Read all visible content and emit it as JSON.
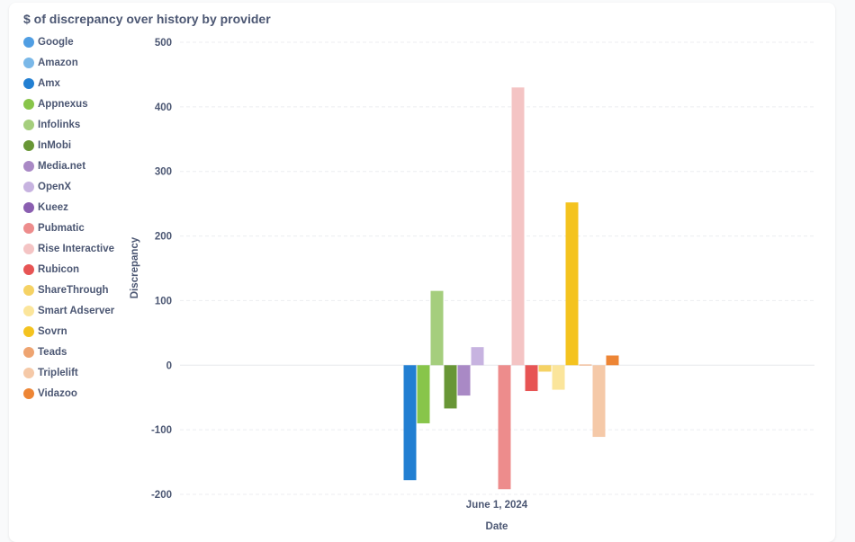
{
  "chart_data": {
    "type": "bar",
    "title": "$ of discrepancy over history by provider",
    "xlabel": "Date",
    "ylabel": "Discrepancy",
    "categories": [
      "June 1, 2024"
    ],
    "ylim": [
      -200,
      500
    ],
    "yticks": [
      500,
      400,
      300,
      200,
      100,
      0,
      -100,
      -200
    ],
    "grid": true,
    "legend_position": "left",
    "series": [
      {
        "name": "Google",
        "color": "#509ee3",
        "values": [
          0
        ]
      },
      {
        "name": "Amazon",
        "color": "#7ab8e8",
        "values": [
          0
        ]
      },
      {
        "name": "Amx",
        "color": "#227fd2",
        "values": [
          -178
        ]
      },
      {
        "name": "Appnexus",
        "color": "#88c54a",
        "values": [
          -90
        ]
      },
      {
        "name": "Infolinks",
        "color": "#a5ce7d",
        "values": [
          115
        ]
      },
      {
        "name": "InMobi",
        "color": "#689636",
        "values": [
          -67
        ]
      },
      {
        "name": "Media.net",
        "color": "#a989c5",
        "values": [
          -47
        ]
      },
      {
        "name": "OpenX",
        "color": "#c7b3e0",
        "values": [
          28
        ]
      },
      {
        "name": "Kueez",
        "color": "#8a5eb0",
        "values": [
          0
        ]
      },
      {
        "name": "Pubmatic",
        "color": "#ed8c8c",
        "values": [
          -192
        ]
      },
      {
        "name": "Rise Interactive",
        "color": "#f4c4c4",
        "values": [
          430
        ]
      },
      {
        "name": "Rubicon",
        "color": "#e75454",
        "values": [
          -40
        ]
      },
      {
        "name": "ShareThrough",
        "color": "#f5d264",
        "values": [
          -10
        ]
      },
      {
        "name": "Smart Adserver",
        "color": "#fbe59b",
        "values": [
          -38
        ]
      },
      {
        "name": "Sovrn",
        "color": "#f4c31f",
        "values": [
          252
        ]
      },
      {
        "name": "Teads",
        "color": "#eea471",
        "values": [
          1
        ]
      },
      {
        "name": "Triplelift",
        "color": "#f5c9a8",
        "values": [
          -111
        ]
      },
      {
        "name": "Vidazoo",
        "color": "#ed8535",
        "values": [
          15
        ]
      }
    ]
  }
}
